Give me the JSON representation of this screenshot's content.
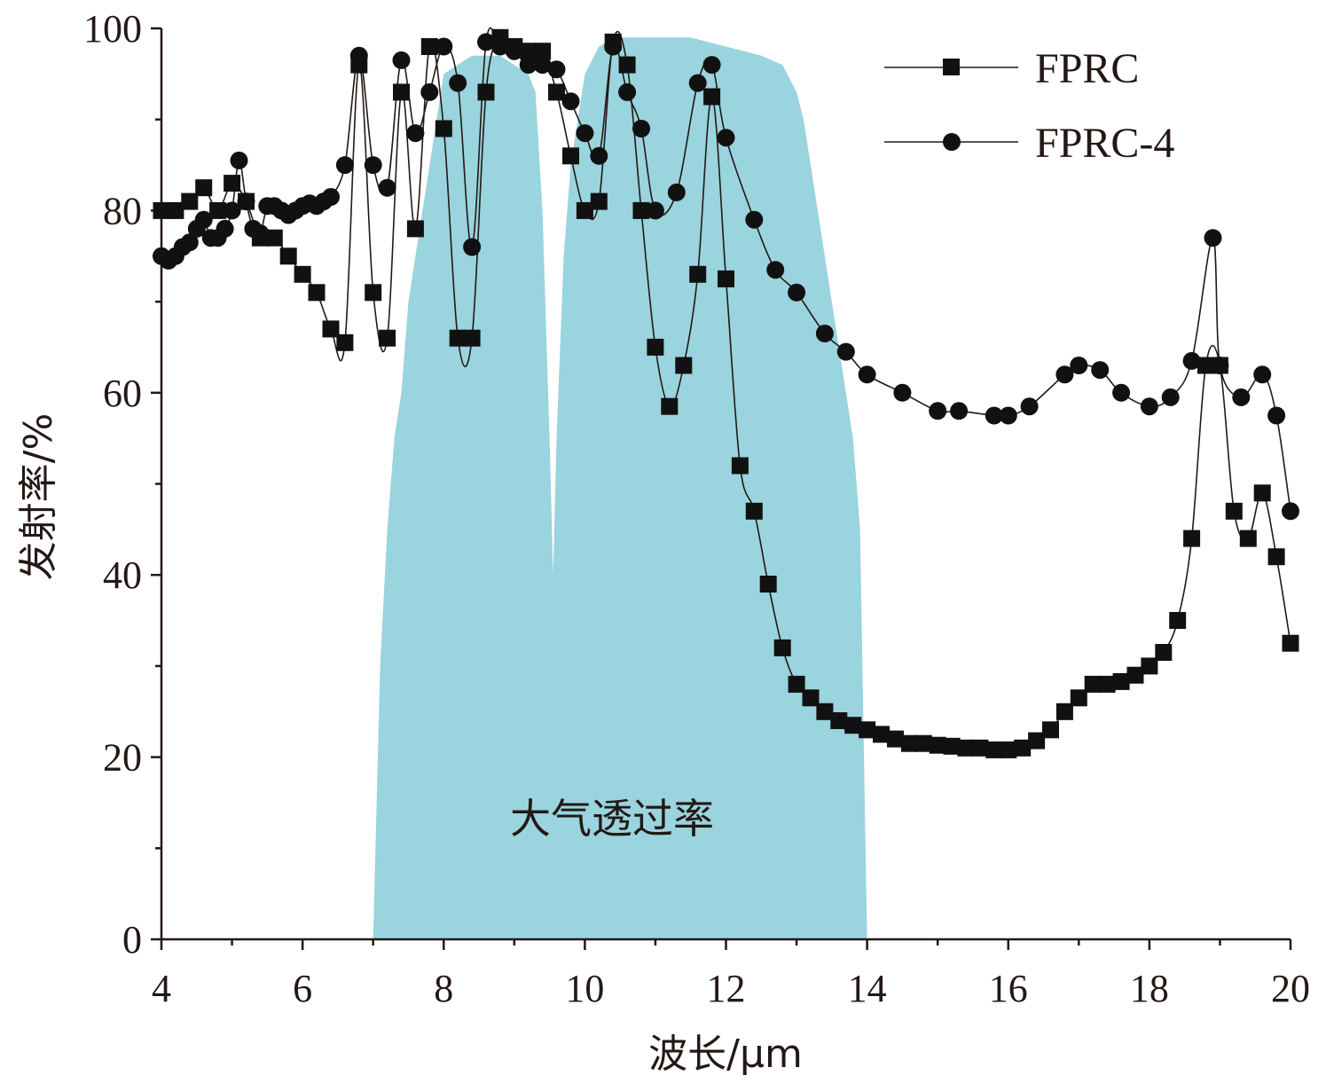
{
  "chart_data": {
    "type": "line",
    "xlabel": "波长/μm",
    "ylabel": "发射率/%",
    "xlim": [
      4,
      20
    ],
    "ylim": [
      0,
      100
    ],
    "xticks": [
      4,
      6,
      8,
      10,
      12,
      14,
      16,
      18,
      20
    ],
    "yticks": [
      0,
      20,
      40,
      60,
      80,
      100
    ],
    "grid": false,
    "legend_position": "top-right",
    "annotation": "大气透过率",
    "atmosphere_band": {
      "name": "大气透过率",
      "color": "#9ad4de",
      "x": [
        7.0,
        7.1,
        7.2,
        7.3,
        7.4,
        7.5,
        7.6,
        7.7,
        7.8,
        7.9,
        8.0,
        8.2,
        8.4,
        8.6,
        8.8,
        9.0,
        9.2,
        9.3,
        9.4,
        9.5,
        9.55,
        9.6,
        9.7,
        9.8,
        9.9,
        10.0,
        10.2,
        10.4,
        10.6,
        10.8,
        11.0,
        11.5,
        12.0,
        12.5,
        12.8,
        13.0,
        13.1,
        13.2,
        13.3,
        13.4,
        13.5,
        13.6,
        13.7,
        13.8,
        13.9,
        14.0
      ],
      "values": [
        0,
        30,
        45,
        55,
        60,
        70,
        75,
        80,
        85,
        90,
        95,
        96,
        97,
        97,
        97,
        96,
        95,
        93,
        80,
        55,
        40,
        55,
        75,
        85,
        90,
        95,
        98,
        99,
        99,
        99,
        99,
        99,
        98,
        97,
        96,
        93,
        90,
        85,
        80,
        75,
        70,
        65,
        60,
        55,
        45,
        0
      ]
    },
    "series": [
      {
        "name": "FPRC",
        "marker": "square",
        "x": [
          4.0,
          4.2,
          4.4,
          4.6,
          4.8,
          5.0,
          5.2,
          5.4,
          5.6,
          5.8,
          6.0,
          6.2,
          6.4,
          6.6,
          6.8,
          7.0,
          7.2,
          7.4,
          7.6,
          7.8,
          8.0,
          8.2,
          8.4,
          8.6,
          8.8,
          9.0,
          9.2,
          9.4,
          9.6,
          9.8,
          10.0,
          10.2,
          10.4,
          10.6,
          10.8,
          11.0,
          11.2,
          11.4,
          11.6,
          11.8,
          12.0,
          12.2,
          12.4,
          12.6,
          12.8,
          13.0,
          13.2,
          13.4,
          13.6,
          13.8,
          14.0,
          14.2,
          14.4,
          14.6,
          14.8,
          15.0,
          15.2,
          15.4,
          15.6,
          15.8,
          16.0,
          16.2,
          16.4,
          16.6,
          16.8,
          17.0,
          17.2,
          17.4,
          17.6,
          17.8,
          18.0,
          18.2,
          18.4,
          18.6,
          18.8,
          19.0,
          19.2,
          19.4,
          19.6,
          19.8,
          20.0
        ],
        "values": [
          80,
          80,
          81,
          82.5,
          80,
          83,
          81,
          77,
          77,
          75,
          73,
          71,
          67,
          65.5,
          96,
          71,
          66,
          93,
          78,
          98,
          89,
          66,
          66,
          93,
          99,
          98,
          97.5,
          97.5,
          93,
          86,
          80,
          81,
          98.5,
          96,
          80,
          65,
          58.5,
          63,
          73,
          92.5,
          72.5,
          52,
          47,
          39,
          32,
          28,
          26.5,
          25,
          24,
          23.5,
          23,
          22.5,
          22,
          21.5,
          21.5,
          21.3,
          21.2,
          21,
          21,
          20.8,
          20.8,
          21,
          21.8,
          23,
          25,
          26.5,
          28,
          28,
          28.3,
          29,
          30,
          31.5,
          35,
          44,
          63,
          63,
          47,
          44,
          49,
          42,
          32.5
        ]
      },
      {
        "name": "FPRC-4",
        "marker": "circle",
        "x": [
          4.0,
          4.1,
          4.2,
          4.3,
          4.4,
          4.5,
          4.6,
          4.7,
          4.8,
          4.9,
          5.0,
          5.1,
          5.2,
          5.3,
          5.4,
          5.5,
          5.6,
          5.7,
          5.8,
          5.9,
          6.0,
          6.1,
          6.2,
          6.3,
          6.4,
          6.6,
          6.8,
          7.0,
          7.2,
          7.4,
          7.6,
          7.8,
          8.0,
          8.2,
          8.4,
          8.6,
          8.8,
          9.0,
          9.2,
          9.4,
          9.6,
          9.8,
          10.0,
          10.2,
          10.4,
          10.6,
          10.8,
          11.0,
          11.3,
          11.6,
          11.8,
          12.0,
          12.4,
          12.7,
          13.0,
          13.4,
          13.7,
          14.0,
          14.5,
          15.0,
          15.3,
          15.8,
          16.0,
          16.3,
          16.8,
          17.0,
          17.3,
          17.6,
          18.0,
          18.3,
          18.6,
          18.9,
          19.0,
          19.3,
          19.6,
          19.8,
          20.0
        ],
        "values": [
          75,
          74.5,
          75,
          76,
          76.5,
          78,
          79,
          77,
          77,
          78,
          80,
          85.5,
          81,
          78,
          77.5,
          80.5,
          80.5,
          80,
          79.5,
          80,
          80.5,
          80.8,
          80.5,
          81,
          81.5,
          85,
          97,
          85,
          82.5,
          96.5,
          88.5,
          93,
          98,
          94,
          76,
          98.5,
          98,
          97.5,
          96,
          96,
          95.5,
          92,
          88.5,
          86,
          98,
          93,
          89,
          80,
          82,
          94,
          96,
          88,
          79,
          73.5,
          71,
          66.5,
          64.5,
          62,
          60,
          58,
          58,
          57.5,
          57.5,
          58.5,
          62,
          63,
          62.5,
          60,
          58.5,
          59.5,
          63.5,
          77,
          63,
          59.5,
          62,
          57.5,
          47
        ]
      }
    ]
  }
}
